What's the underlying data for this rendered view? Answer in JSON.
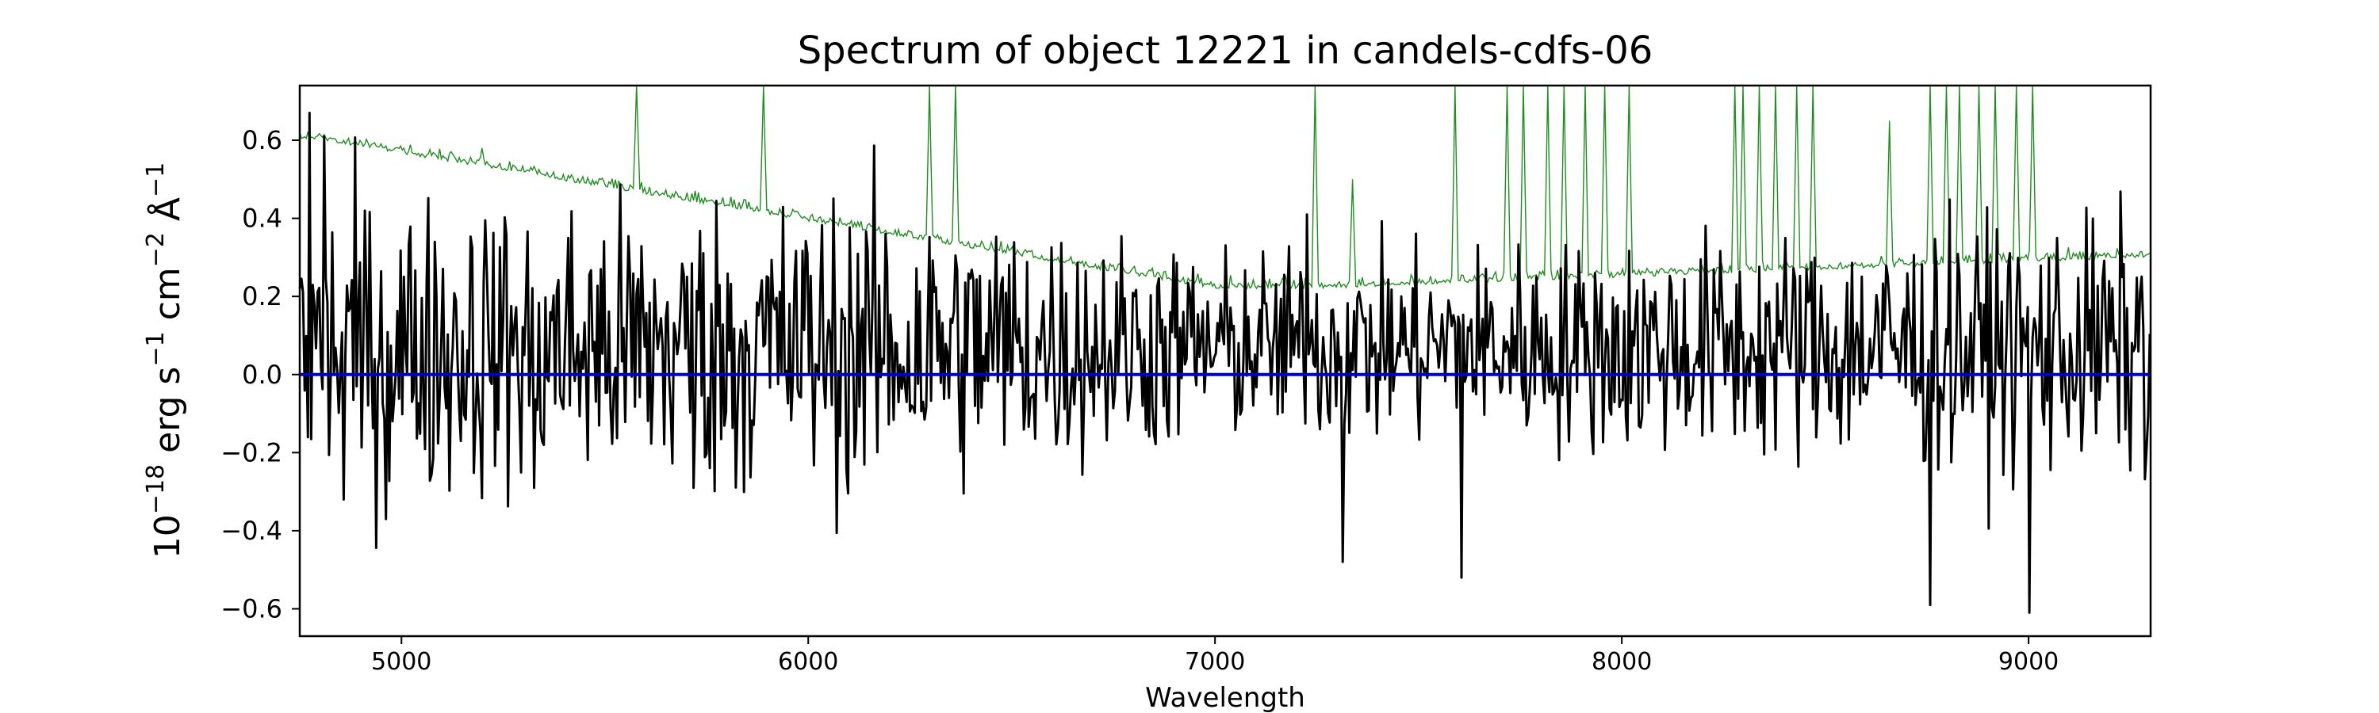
{
  "chart_data": {
    "type": "line",
    "title": "Spectrum of object 12221 in candels-cdfs-06",
    "xlabel": "Wavelength",
    "ylabel_parts": {
      "base": "10",
      "exp1": "−18",
      "erg": " erg s",
      "exp2": "−1",
      "cm": " cm",
      "exp3": "−2",
      "ang": " Å",
      "exp4": "−1"
    },
    "xlim": [
      4750,
      9300
    ],
    "ylim": [
      -0.67,
      0.74
    ],
    "x_ticks": [
      5000,
      6000,
      7000,
      8000,
      9000
    ],
    "y_ticks": [
      -0.6,
      -0.4,
      -0.2,
      0.0,
      0.2,
      0.4,
      0.6
    ],
    "y_tick_labels": [
      "−0.6",
      "−0.4",
      "−0.2",
      "0.0",
      "0.2",
      "0.4",
      "0.6"
    ],
    "grid": false,
    "legend": "none",
    "x_sampling": {
      "start": 4750,
      "step": 4
    },
    "series": [
      {
        "role": "flux",
        "color": "#000000"
      },
      {
        "role": "error",
        "color": "#228b22"
      },
      {
        "role": "model",
        "color": "#0000cc",
        "values": [
          0,
          0
        ]
      }
    ],
    "flux_features": [
      {
        "x": 4750,
        "y": 0.22
      },
      {
        "x": 4775,
        "y": 0.67
      },
      {
        "x": 4810,
        "y": 0.61
      },
      {
        "x": 4858,
        "y": -0.32
      },
      {
        "x": 4962,
        "y": -0.37
      },
      {
        "x": 5328,
        "y": -0.29
      },
      {
        "x": 5720,
        "y": -0.29
      },
      {
        "x": 7314,
        "y": -0.48
      },
      {
        "x": 7225,
        "y": 0.41
      },
      {
        "x": 7606,
        "y": -0.52
      },
      {
        "x": 8760,
        "y": -0.59
      },
      {
        "x": 9004,
        "y": -0.61
      },
      {
        "x": 9290,
        "y": -0.19
      }
    ],
    "error_features": [
      {
        "x": 5200,
        "y": 0.58
      },
      {
        "x": 5578,
        "y": 0.74
      },
      {
        "x": 5890,
        "y": 0.74
      },
      {
        "x": 6300,
        "y": 0.74
      },
      {
        "x": 6364,
        "y": 0.74
      },
      {
        "x": 7247,
        "y": 0.74
      },
      {
        "x": 7340,
        "y": 0.5
      },
      {
        "x": 7590,
        "y": 0.74
      },
      {
        "x": 7720,
        "y": 0.74
      },
      {
        "x": 7760,
        "y": 0.74
      },
      {
        "x": 7820,
        "y": 0.74
      },
      {
        "x": 7860,
        "y": 0.74
      },
      {
        "x": 7910,
        "y": 0.74
      },
      {
        "x": 7960,
        "y": 0.74
      },
      {
        "x": 8020,
        "y": 0.74
      },
      {
        "x": 8280,
        "y": 0.74
      },
      {
        "x": 8300,
        "y": 0.74
      },
      {
        "x": 8340,
        "y": 0.74
      },
      {
        "x": 8380,
        "y": 0.74
      },
      {
        "x": 8430,
        "y": 0.74
      },
      {
        "x": 8470,
        "y": 0.74
      },
      {
        "x": 8660,
        "y": 0.65
      },
      {
        "x": 8760,
        "y": 0.74
      },
      {
        "x": 8800,
        "y": 0.74
      },
      {
        "x": 8830,
        "y": 0.74
      },
      {
        "x": 8880,
        "y": 0.74
      },
      {
        "x": 8920,
        "y": 0.74
      },
      {
        "x": 8970,
        "y": 0.74
      },
      {
        "x": 9010,
        "y": 0.74
      }
    ]
  }
}
